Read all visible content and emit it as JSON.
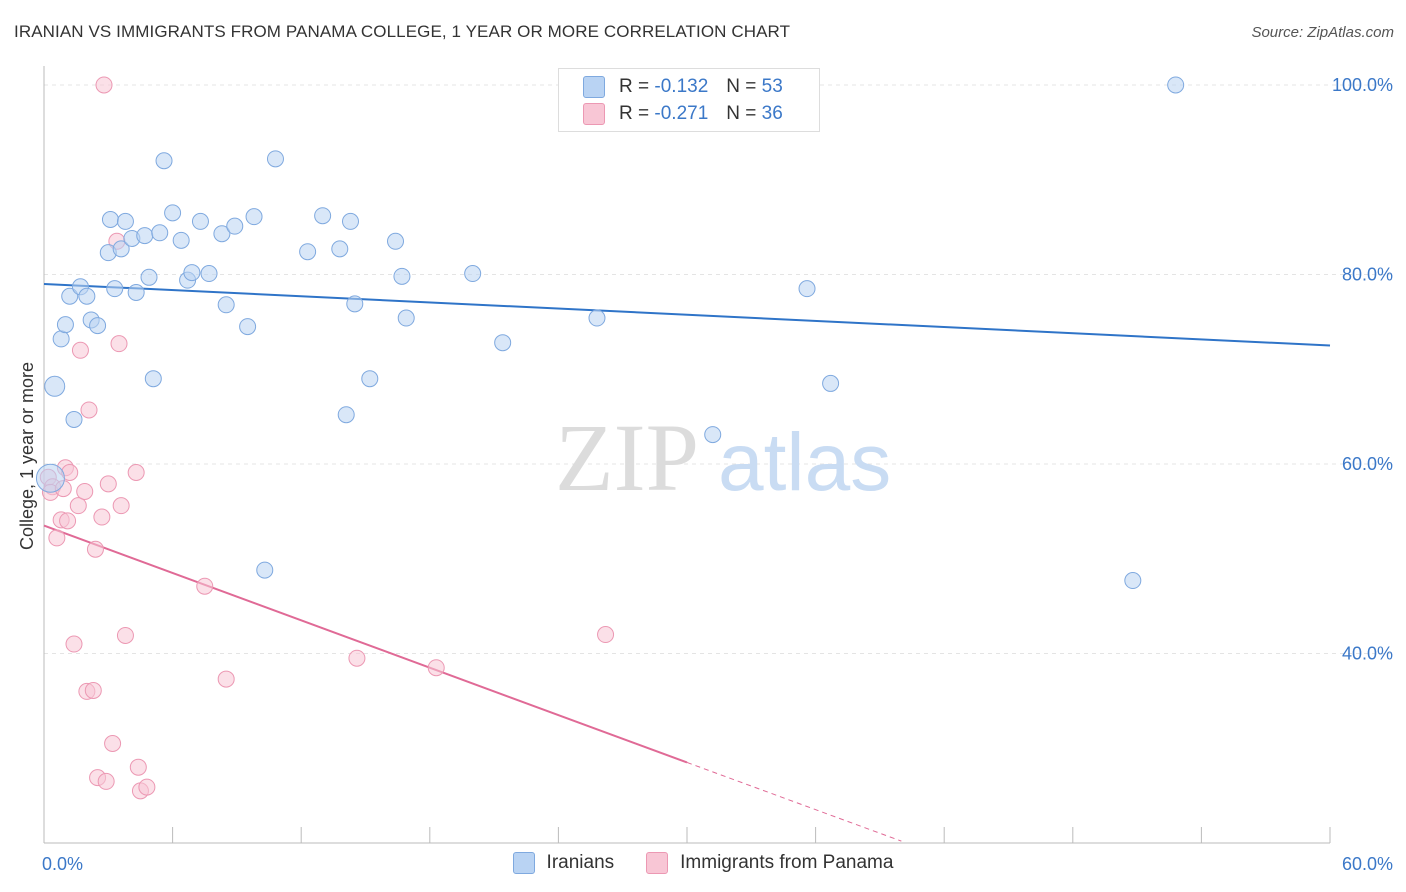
{
  "header": {
    "title": "IRANIAN VS IMMIGRANTS FROM PANAMA COLLEGE, 1 YEAR OR MORE CORRELATION CHART",
    "source": "Source: ZipAtlas.com"
  },
  "watermark": {
    "zip": "ZIP",
    "atlas": "atlas"
  },
  "legend": {
    "rows": [
      {
        "r_label": "R =",
        "r_value": "-0.132",
        "n_label": "N =",
        "n_value": "53"
      },
      {
        "r_label": "R =",
        "r_value": "-0.271",
        "n_label": "N =",
        "n_value": "36"
      }
    ]
  },
  "bottom_legend": {
    "series1": "Iranians",
    "series2": "Immigrants from Panama"
  },
  "colors": {
    "blue_fill": "#b9d3f3",
    "blue_stroke": "#7fa9df",
    "blue_line": "#2f74c8",
    "pink_fill": "#f8c6d5",
    "pink_stroke": "#ec98b3",
    "pink_line": "#e06a96"
  },
  "chart_data": {
    "type": "scatter",
    "title": "IRANIAN VS IMMIGRANTS FROM PANAMA COLLEGE, 1 YEAR OR MORE CORRELATION CHART",
    "xlabel": "",
    "ylabel": "College, 1 year or more",
    "xlim": [
      0,
      60
    ],
    "ylim": [
      20,
      102
    ],
    "y_ticks": [
      40,
      60,
      80,
      100
    ],
    "y_tick_labels": [
      "40.0%",
      "60.0%",
      "80.0%",
      "100.0%"
    ],
    "x_tick_labels": [
      "0.0%",
      "60.0%"
    ],
    "series": [
      {
        "name": "Iranians",
        "r": -0.132,
        "n": 53,
        "trend": {
          "x": [
            0,
            60
          ],
          "y": [
            79.0,
            72.5
          ]
        },
        "points": [
          [
            0.5,
            68.2
          ],
          [
            0.8,
            73.2
          ],
          [
            1.0,
            74.7
          ],
          [
            1.2,
            77.7
          ],
          [
            1.4,
            64.7
          ],
          [
            1.7,
            78.7
          ],
          [
            2.0,
            77.7
          ],
          [
            2.2,
            75.2
          ],
          [
            2.5,
            74.6
          ],
          [
            3.0,
            82.3
          ],
          [
            3.1,
            85.8
          ],
          [
            3.3,
            78.5
          ],
          [
            3.6,
            82.7
          ],
          [
            3.8,
            85.6
          ],
          [
            4.1,
            83.8
          ],
          [
            4.3,
            78.1
          ],
          [
            4.7,
            84.1
          ],
          [
            4.9,
            79.7
          ],
          [
            5.1,
            69.0
          ],
          [
            5.4,
            84.4
          ],
          [
            5.6,
            92.0
          ],
          [
            6.0,
            86.5
          ],
          [
            6.4,
            83.6
          ],
          [
            6.7,
            79.4
          ],
          [
            6.9,
            80.2
          ],
          [
            7.3,
            85.6
          ],
          [
            7.7,
            80.1
          ],
          [
            8.3,
            84.3
          ],
          [
            8.5,
            76.8
          ],
          [
            8.9,
            85.1
          ],
          [
            9.5,
            74.5
          ],
          [
            9.8,
            86.1
          ],
          [
            10.3,
            48.8
          ],
          [
            10.8,
            92.2
          ],
          [
            12.3,
            82.4
          ],
          [
            13.0,
            86.2
          ],
          [
            13.8,
            82.7
          ],
          [
            14.1,
            65.2
          ],
          [
            14.3,
            85.6
          ],
          [
            14.5,
            76.9
          ],
          [
            15.2,
            69.0
          ],
          [
            16.4,
            83.5
          ],
          [
            16.7,
            79.8
          ],
          [
            16.9,
            75.4
          ],
          [
            20.0,
            80.1
          ],
          [
            21.4,
            72.8
          ],
          [
            25.8,
            75.4
          ],
          [
            31.2,
            63.1
          ],
          [
            35.6,
            78.5
          ],
          [
            36.7,
            68.5
          ],
          [
            50.8,
            47.7
          ],
          [
            52.8,
            100.0
          ],
          [
            0.3,
            58.5
          ]
        ]
      },
      {
        "name": "Immigrants from Panama",
        "r": -0.271,
        "n": 36,
        "trend": {
          "x": [
            0,
            30
          ],
          "y": [
            53.5,
            28.5
          ]
        },
        "trend_dashed": {
          "x": [
            30,
            40
          ],
          "y": [
            28.5,
            20.2
          ]
        },
        "points": [
          [
            0.2,
            58.6
          ],
          [
            0.4,
            57.6
          ],
          [
            0.6,
            52.2
          ],
          [
            0.8,
            54.1
          ],
          [
            1.0,
            59.6
          ],
          [
            1.1,
            54.0
          ],
          [
            1.2,
            59.1
          ],
          [
            1.4,
            41.0
          ],
          [
            1.6,
            55.6
          ],
          [
            1.9,
            57.1
          ],
          [
            2.0,
            36.0
          ],
          [
            2.1,
            65.7
          ],
          [
            2.3,
            36.1
          ],
          [
            2.4,
            51.0
          ],
          [
            2.5,
            26.9
          ],
          [
            2.7,
            54.4
          ],
          [
            2.9,
            26.5
          ],
          [
            3.2,
            30.5
          ],
          [
            3.4,
            83.5
          ],
          [
            3.5,
            72.7
          ],
          [
            3.6,
            55.6
          ],
          [
            3.8,
            41.9
          ],
          [
            4.3,
            59.1
          ],
          [
            4.4,
            28.0
          ],
          [
            4.5,
            25.5
          ],
          [
            4.8,
            25.9
          ],
          [
            7.5,
            47.1
          ],
          [
            8.5,
            37.3
          ],
          [
            14.6,
            39.5
          ],
          [
            18.3,
            38.5
          ],
          [
            26.2,
            42.0
          ],
          [
            2.8,
            100.0
          ],
          [
            0.3,
            57.0
          ],
          [
            1.7,
            72.0
          ],
          [
            0.9,
            57.4
          ],
          [
            3.0,
            57.9
          ]
        ]
      }
    ]
  }
}
